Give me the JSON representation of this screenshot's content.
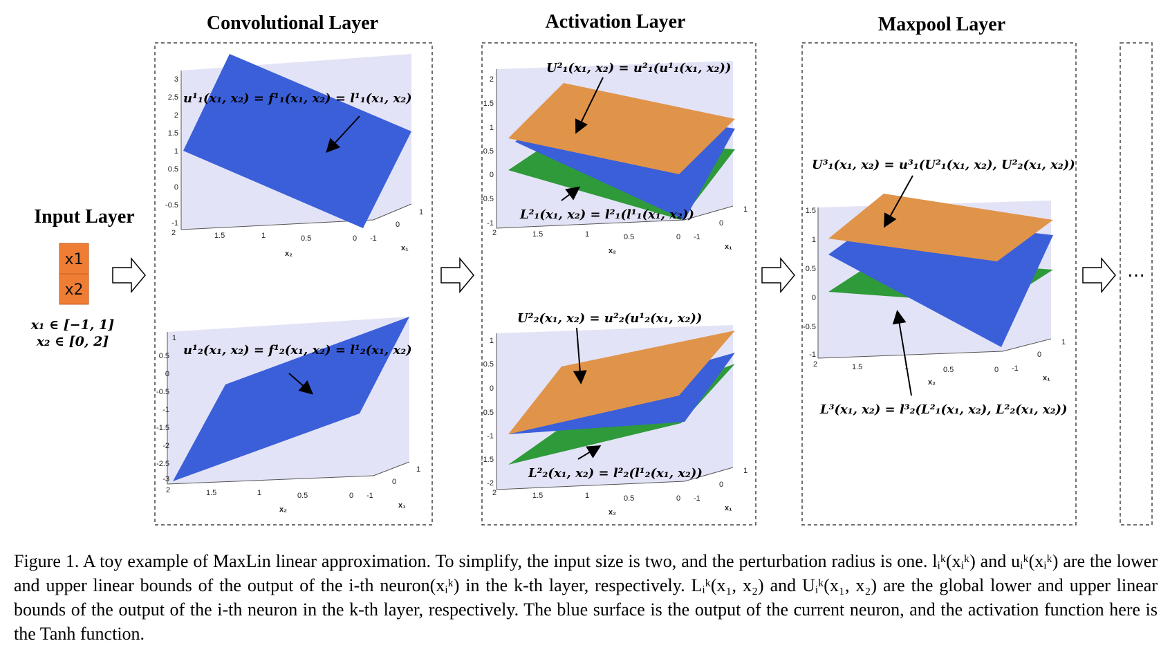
{
  "layers": {
    "input": {
      "title": "Input Layer",
      "nodes": [
        "x1",
        "x2"
      ],
      "domains": [
        "x₁ ∈ [−1, 1]",
        "x₂ ∈ [0, 2]"
      ]
    },
    "conv": {
      "title": "Convolutional Layer"
    },
    "act": {
      "title": "Activation Layer"
    },
    "maxpool": {
      "title": "Maxpool Layer"
    },
    "more": {
      "label": "…"
    }
  },
  "axes": {
    "x1_label": "x₁",
    "x2_label": "x₂",
    "x1_ticks": [
      "-1",
      "0",
      "1"
    ],
    "x2_ticks": [
      "0",
      "0.5",
      "1",
      "1.5",
      "2"
    ]
  },
  "plots": [
    {
      "id": "conv-top",
      "z_ticks": [
        "-1",
        "-0.5",
        "0",
        "0.5",
        "1",
        "1.5",
        "2",
        "2.5",
        "3"
      ],
      "surfaces": [
        {
          "color": "#3a5fd9",
          "role": "output"
        }
      ],
      "annotations": [
        "u¹₁(x₁, x₂) = f¹₁(x₁, x₂) = l¹₁(x₁, x₂)"
      ]
    },
    {
      "id": "conv-bottom",
      "z_ticks": [
        "-3",
        "-2.5",
        "-2",
        "-1.5",
        "-1",
        "-0.5",
        "0",
        "0.5",
        "1"
      ],
      "surfaces": [
        {
          "color": "#3a5fd9",
          "role": "output"
        }
      ],
      "annotations": [
        "u¹₂(x₁, x₂) = f¹₂(x₁, x₂) = l¹₂(x₁, x₂)"
      ]
    },
    {
      "id": "act-top",
      "z_ticks": [
        "-1",
        "-0.5",
        "0",
        "0.5",
        "1",
        "1.5",
        "2"
      ],
      "surfaces": [
        {
          "color": "#2e9a3a",
          "role": "lower"
        },
        {
          "color": "#3a5fd9",
          "role": "output"
        },
        {
          "color": "#e0944a",
          "role": "upper"
        }
      ],
      "annotations": [
        "U²₁(x₁, x₂) = u²₁(u¹₁(x₁, x₂))",
        "L²₁(x₁, x₂) = l²₁(l¹₁(x₁, x₂))"
      ]
    },
    {
      "id": "act-bottom",
      "z_ticks": [
        "-2",
        "-1.5",
        "-1",
        "-0.5",
        "0",
        "0.5",
        "1"
      ],
      "surfaces": [
        {
          "color": "#2e9a3a",
          "role": "lower"
        },
        {
          "color": "#3a5fd9",
          "role": "output"
        },
        {
          "color": "#e0944a",
          "role": "upper"
        }
      ],
      "annotations": [
        "U²₂(x₁, x₂) = u²₂(u¹₂(x₁, x₂))",
        "L²₂(x₁, x₂) = l²₂(l¹₂(x₁, x₂))"
      ]
    },
    {
      "id": "maxpool",
      "z_ticks": [
        "-1",
        "-0.5",
        "0",
        "0.5",
        "1",
        "1.5"
      ],
      "surfaces": [
        {
          "color": "#2e9a3a",
          "role": "lower"
        },
        {
          "color": "#3a5fd9",
          "role": "output"
        },
        {
          "color": "#e0944a",
          "role": "upper"
        }
      ],
      "annotations": [
        "U³₁(x₁, x₂) = u³₁(U²₁(x₁, x₂), U²₂(x₁, x₂))",
        "L³(x₁, x₂) = l³₂(L²₁(x₁, x₂), L²₂(x₁, x₂))"
      ]
    }
  ],
  "colors": {
    "pane": "#e3e3f7",
    "node_fill": "#ef7d34",
    "border": "#444444"
  },
  "caption": {
    "label": "Figure 1.",
    "text": "A toy example of MaxLin linear approximation. To simplify, the input size is two, and the perturbation radius is one. lᵢᵏ(xᵢᵏ) and uᵢᵏ(xᵢᵏ) are the lower and upper linear bounds of the output of the i-th neuron(xᵢᵏ) in the k-th layer, respectively. Lᵢᵏ(x₁, x₂) and Uᵢᵏ(x₁, x₂) are the global lower and upper linear bounds of the output of the i-th neuron in the k-th layer, respectively. The blue surface is the output of the current neuron, and the activation function here is the Tanh function."
  }
}
